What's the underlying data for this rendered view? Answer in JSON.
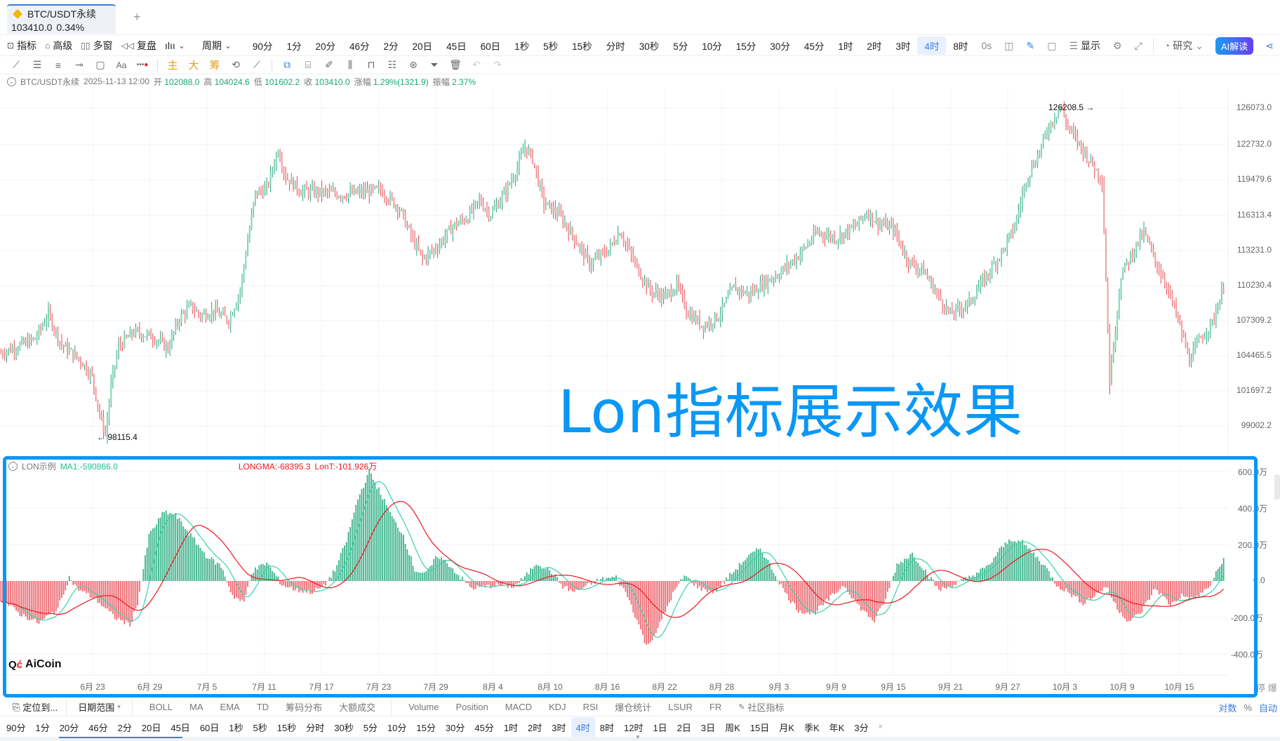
{
  "tab": {
    "symbol": "BTC/USDT永续",
    "price": "103410.0",
    "change": "0.34%",
    "add_label": "+"
  },
  "toolbar1": {
    "left_items": [
      {
        "icon": "indicator-icon",
        "label": "指标"
      },
      {
        "icon": "advanced-icon",
        "label": "高级"
      },
      {
        "icon": "multi-window-icon",
        "label": "多窗"
      },
      {
        "icon": "replay-icon",
        "label": "复盘"
      }
    ],
    "chart_type_label": "ılıı",
    "period_label": "周期",
    "periods": [
      "90分",
      "1分",
      "20分",
      "46分",
      "2分",
      "20日",
      "45日",
      "60日",
      "1秒",
      "5秒",
      "15秒",
      "分时",
      "30秒",
      "5分",
      "10分",
      "15分",
      "30分",
      "45分",
      "1时",
      "2时",
      "3时",
      "4时",
      "8时"
    ],
    "active_period": "4时",
    "right_items": {
      "timer": "0s",
      "display_label": "显示",
      "research_label": "研究",
      "ai_label": "AI解读"
    }
  },
  "drawing_tools": {
    "gold_labels": [
      "主",
      "大",
      "筹"
    ]
  },
  "info_line": {
    "symbol": "BTC/USDT永续",
    "datetime": "2025-11-13 12:00",
    "open_label": "开",
    "open": "102088.0",
    "high_label": "高",
    "high": "104024.6",
    "low_label": "低",
    "low": "101602.2",
    "close_label": "收",
    "close": "103410.0",
    "change_label": "涨幅",
    "change": "1.29%(1321.9)",
    "amplitude_label": "振幅",
    "amplitude": "2.37%"
  },
  "price_axis": [
    "126073.0",
    "122732.0",
    "119479.6",
    "116313.4",
    "113231.0",
    "110230.4",
    "107309.2",
    "104465.5",
    "101697.2",
    "99002.2"
  ],
  "markers": {
    "high": "126208.5 →",
    "low": "← 98115.4"
  },
  "overlay_title": "Lon指标展示效果",
  "indicator": {
    "name": "LON示例",
    "ma1": "MA1:-590866.0",
    "longma": "LONGMA:-68395.3",
    "lont": "LonT:-101.926万",
    "axis": [
      "600.0万",
      "400.0万",
      "200.0万",
      "0.0",
      "-200.0万",
      "-400.0万"
    ]
  },
  "logo": "AiCoin",
  "date_axis": [
    "6月 23",
    "6月 29",
    "7月 5",
    "7月 11",
    "7月 17",
    "7月 23",
    "7月 29",
    "8月 4",
    "8月 10",
    "8月 16",
    "8月 22",
    "8月 28",
    "9月 3",
    "9月 9",
    "9月 15",
    "9月 21",
    "9月 27",
    "10月 3",
    "10月 9",
    "10月 15"
  ],
  "side_chars": "停 爆",
  "bottom_bar1": {
    "locate": "定位到...",
    "date_range": "日期范围",
    "main_indicators": [
      "BOLL",
      "MA",
      "EMA",
      "TD",
      "筹码分布",
      "大额成交"
    ],
    "sub_indicators": [
      "Volume",
      "Position",
      "MACD",
      "KDJ",
      "RSI",
      "爆仓统计",
      "LSUR",
      "FR"
    ],
    "community": "社区指标",
    "log_label": "对数",
    "pct_label": "%",
    "auto_label": "自动"
  },
  "bottom_bar2": {
    "periods": [
      "90分",
      "1分",
      "20分",
      "46分",
      "2分",
      "20日",
      "45日",
      "60日",
      "1秒",
      "5秒",
      "15秒",
      "分时",
      "30秒",
      "5分",
      "10分",
      "15分",
      "30分",
      "45分",
      "1时",
      "2时",
      "3时",
      "4时",
      "8时",
      "12时",
      "1日",
      "2日",
      "3日",
      "周K",
      "15日",
      "月K",
      "季K",
      "年K",
      "3分"
    ],
    "active": "4时",
    "close": "×"
  },
  "colors": {
    "up": "#26a17b",
    "up_light": "#7fd6b7",
    "down": "#e8474f",
    "down_light": "#f19ca1",
    "accent": "#0a97f5",
    "ma1_line": "#35d3b0",
    "longma_line": "#f0161d"
  },
  "chart_data": {
    "type": "candlestick+histogram",
    "title": "BTC/USDT永续 4时",
    "price_ylim": [
      98115.4,
      126208.5
    ],
    "price_path_keypoints": [
      [
        0,
        105200
      ],
      [
        18,
        106400
      ],
      [
        25,
        108500
      ],
      [
        32,
        105900
      ],
      [
        42,
        104600
      ],
      [
        48,
        103200
      ],
      [
        52,
        100000
      ],
      [
        55,
        98115
      ],
      [
        58,
        102500
      ],
      [
        62,
        105800
      ],
      [
        70,
        107000
      ],
      [
        80,
        106600
      ],
      [
        88,
        105600
      ],
      [
        94,
        108200
      ],
      [
        100,
        109200
      ],
      [
        105,
        108400
      ],
      [
        112,
        108800
      ],
      [
        120,
        108000
      ],
      [
        126,
        110500
      ],
      [
        130,
        114800
      ],
      [
        134,
        118800
      ],
      [
        140,
        119200
      ],
      [
        146,
        122600
      ],
      [
        150,
        120200
      ],
      [
        158,
        119000
      ],
      [
        170,
        118900
      ],
      [
        180,
        118700
      ],
      [
        190,
        118900
      ],
      [
        200,
        119100
      ],
      [
        210,
        117500
      ],
      [
        216,
        115200
      ],
      [
        222,
        113200
      ],
      [
        230,
        114300
      ],
      [
        238,
        116000
      ],
      [
        246,
        116800
      ],
      [
        252,
        118200
      ],
      [
        258,
        117000
      ],
      [
        266,
        119000
      ],
      [
        272,
        121000
      ],
      [
        276,
        122800
      ],
      [
        280,
        121800
      ],
      [
        286,
        118000
      ],
      [
        294,
        117000
      ],
      [
        302,
        115000
      ],
      [
        310,
        112800
      ],
      [
        320,
        114000
      ],
      [
        326,
        115600
      ],
      [
        334,
        112800
      ],
      [
        342,
        110500
      ],
      [
        350,
        110000
      ],
      [
        356,
        111000
      ],
      [
        362,
        108600
      ],
      [
        370,
        107500
      ],
      [
        378,
        108400
      ],
      [
        386,
        110800
      ],
      [
        394,
        110200
      ],
      [
        402,
        111200
      ],
      [
        410,
        112000
      ],
      [
        420,
        113500
      ],
      [
        430,
        115500
      ],
      [
        440,
        115000
      ],
      [
        450,
        116000
      ],
      [
        456,
        117200
      ],
      [
        462,
        116300
      ],
      [
        470,
        115800
      ],
      [
        478,
        113000
      ],
      [
        486,
        112200
      ],
      [
        494,
        110000
      ],
      [
        500,
        108500
      ],
      [
        510,
        109500
      ],
      [
        520,
        112000
      ],
      [
        528,
        114000
      ],
      [
        534,
        116000
      ],
      [
        540,
        120000
      ],
      [
        546,
        122000
      ],
      [
        552,
        124500
      ],
      [
        558,
        126208
      ],
      [
        562,
        124500
      ],
      [
        568,
        123000
      ],
      [
        574,
        121500
      ],
      [
        580,
        120000
      ],
      [
        584,
        103000
      ],
      [
        590,
        111800
      ],
      [
        596,
        113800
      ],
      [
        602,
        115500
      ],
      [
        608,
        113000
      ],
      [
        614,
        111000
      ],
      [
        620,
        108000
      ],
      [
        626,
        104600
      ],
      [
        632,
        106500
      ],
      [
        638,
        107800
      ],
      [
        644,
        110800
      ]
    ],
    "candle_count": 645,
    "indicator_ylim": [
      -4500000,
      6500000
    ],
    "indicator_keypoints": [
      [
        0,
        -1000000
      ],
      [
        10,
        -1800000
      ],
      [
        20,
        -2300000
      ],
      [
        30,
        -1500000
      ],
      [
        36,
        200000
      ],
      [
        40,
        -400000
      ],
      [
        50,
        -1000000
      ],
      [
        60,
        -2000000
      ],
      [
        68,
        -2400000
      ],
      [
        72,
        -1200000
      ],
      [
        78,
        2500000
      ],
      [
        86,
        3800000
      ],
      [
        92,
        3600000
      ],
      [
        100,
        2500000
      ],
      [
        108,
        1400000
      ],
      [
        116,
        800000
      ],
      [
        122,
        -800000
      ],
      [
        128,
        -1200000
      ],
      [
        132,
        500000
      ],
      [
        140,
        1000000
      ],
      [
        148,
        -200000
      ],
      [
        156,
        -500000
      ],
      [
        164,
        -600000
      ],
      [
        170,
        -300000
      ],
      [
        176,
        600000
      ],
      [
        182,
        2200000
      ],
      [
        188,
        4500000
      ],
      [
        194,
        6000000
      ],
      [
        200,
        4800000
      ],
      [
        206,
        3500000
      ],
      [
        212,
        2500000
      ],
      [
        218,
        600000
      ],
      [
        224,
        400000
      ],
      [
        230,
        1400000
      ],
      [
        236,
        900000
      ],
      [
        242,
        200000
      ],
      [
        248,
        -400000
      ],
      [
        256,
        -300000
      ],
      [
        262,
        -200000
      ],
      [
        270,
        -300000
      ],
      [
        276,
        200000
      ],
      [
        282,
        1000000
      ],
      [
        290,
        500000
      ],
      [
        296,
        -300000
      ],
      [
        302,
        -600000
      ],
      [
        308,
        -300000
      ],
      [
        316,
        100000
      ],
      [
        324,
        200000
      ],
      [
        330,
        -800000
      ],
      [
        336,
        -2400000
      ],
      [
        340,
        -3600000
      ],
      [
        346,
        -2600000
      ],
      [
        354,
        -700000
      ],
      [
        360,
        300000
      ],
      [
        368,
        -400000
      ],
      [
        376,
        -600000
      ],
      [
        384,
        300000
      ],
      [
        392,
        1200000
      ],
      [
        400,
        1800000
      ],
      [
        406,
        700000
      ],
      [
        414,
        -800000
      ],
      [
        420,
        -1600000
      ],
      [
        428,
        -1800000
      ],
      [
        436,
        -1000000
      ],
      [
        444,
        -200000
      ],
      [
        452,
        -1400000
      ],
      [
        460,
        -2200000
      ],
      [
        466,
        -1000000
      ],
      [
        472,
        900000
      ],
      [
        480,
        1500000
      ],
      [
        486,
        700000
      ],
      [
        494,
        -500000
      ],
      [
        500,
        -300000
      ],
      [
        510,
        200000
      ],
      [
        520,
        800000
      ],
      [
        526,
        1700000
      ],
      [
        532,
        2300000
      ],
      [
        538,
        2100000
      ],
      [
        544,
        1500000
      ],
      [
        550,
        800000
      ],
      [
        556,
        -200000
      ],
      [
        562,
        -600000
      ],
      [
        570,
        -1200000
      ],
      [
        576,
        -800000
      ],
      [
        582,
        -300000
      ],
      [
        588,
        -1500000
      ],
      [
        594,
        -2200000
      ],
      [
        600,
        -1800000
      ],
      [
        608,
        -400000
      ],
      [
        616,
        -1300000
      ],
      [
        622,
        -800000
      ],
      [
        628,
        -1000000
      ],
      [
        636,
        -400000
      ],
      [
        644,
        1200000
      ]
    ],
    "series": [
      {
        "name": "LonT histogram",
        "color_up": "#26a17b",
        "color_down": "#e8474f"
      },
      {
        "name": "MA1",
        "color": "#35d3b0"
      },
      {
        "name": "LONGMA",
        "color": "#f0161d"
      }
    ],
    "x_ticks": [
      "6月 23",
      "6月 29",
      "7月 5",
      "7月 11",
      "7月 17",
      "7月 23",
      "7月 29",
      "8月 4",
      "8月 10",
      "8月 16",
      "8月 22",
      "8月 28",
      "9月 3",
      "9月 9",
      "9月 15",
      "9月 21",
      "9月 27",
      "10月 3",
      "10月 9",
      "10月 15"
    ],
    "y_ticks_price": [
      126073.0,
      122732.0,
      119479.6,
      116313.4,
      113231.0,
      110230.4,
      107309.2,
      104465.5,
      101697.2,
      99002.2
    ],
    "y_ticks_indicator": [
      "600.0万",
      "400.0万",
      "200.0万",
      "0.0",
      "-200.0万",
      "-400.0万"
    ],
    "grid": true
  }
}
